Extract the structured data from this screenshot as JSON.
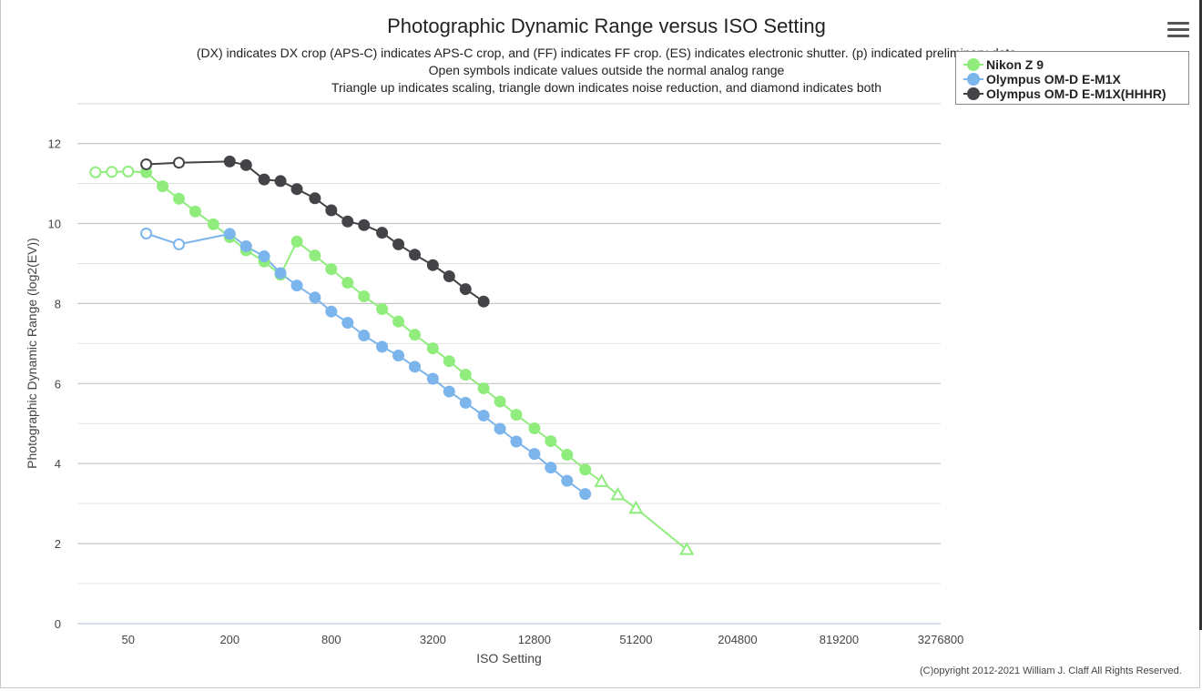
{
  "header": {
    "title": "Photographic Dynamic Range versus ISO Setting",
    "subtitle_lines": [
      "(DX) indicates DX crop (APS-C) indicates APS-C crop, and (FF) indicates FF crop. (ES) indicates electronic shutter. (p) indicated preliminary data",
      "Open symbols indicate values outside the normal analog range",
      "Triangle up indicates scaling, triangle down indicates noise reduction, and diamond indicates both"
    ],
    "menu_icon": "hamburger-menu-icon"
  },
  "legend": {
    "items": [
      {
        "label": "Nikon Z 9",
        "color": "#90ed7d"
      },
      {
        "label": "Olympus OM-D E-M1X",
        "color": "#7cb5ec"
      },
      {
        "label": "Olympus OM-D E-M1X(HHHR)",
        "color": "#434348"
      }
    ]
  },
  "copyright": "(C)opyright 2012-2021 William J. Claff All Rights Reserved.",
  "chart_data": {
    "type": "line",
    "title": "Photographic Dynamic Range versus ISO Setting",
    "xlabel": "ISO Setting",
    "ylabel": "Photographic Dynamic Range (log2(EV))",
    "x_scale": "log2",
    "xlim": [
      25,
      3276800
    ],
    "ylim": [
      0,
      12
    ],
    "x_ticks": [
      50,
      200,
      800,
      3200,
      12800,
      51200,
      204800,
      819200,
      3276800
    ],
    "y_ticks": [
      0,
      2,
      4,
      6,
      8,
      10,
      12
    ],
    "grid": true,
    "legend_position": "top-right",
    "series": [
      {
        "name": "Nikon Z 9",
        "color": "#90ed7d",
        "points": [
          {
            "x": 32,
            "y": 11.28,
            "m": "open"
          },
          {
            "x": 40,
            "y": 11.29,
            "m": "open"
          },
          {
            "x": 50,
            "y": 11.3,
            "m": "open"
          },
          {
            "x": 64,
            "y": 11.28,
            "m": "filled"
          },
          {
            "x": 80,
            "y": 10.93,
            "m": "filled"
          },
          {
            "x": 100,
            "y": 10.62,
            "m": "filled"
          },
          {
            "x": 125,
            "y": 10.3,
            "m": "filled"
          },
          {
            "x": 160,
            "y": 9.98,
            "m": "filled"
          },
          {
            "x": 200,
            "y": 9.66,
            "m": "filled"
          },
          {
            "x": 250,
            "y": 9.33,
            "m": "filled"
          },
          {
            "x": 320,
            "y": 9.05,
            "m": "filled"
          },
          {
            "x": 400,
            "y": 8.72,
            "m": "filled"
          },
          {
            "x": 500,
            "y": 9.55,
            "m": "filled"
          },
          {
            "x": 640,
            "y": 9.2,
            "m": "filled"
          },
          {
            "x": 800,
            "y": 8.86,
            "m": "filled"
          },
          {
            "x": 1000,
            "y": 8.52,
            "m": "filled"
          },
          {
            "x": 1250,
            "y": 8.18,
            "m": "filled"
          },
          {
            "x": 1600,
            "y": 7.86,
            "m": "filled"
          },
          {
            "x": 2000,
            "y": 7.55,
            "m": "filled"
          },
          {
            "x": 2500,
            "y": 7.22,
            "m": "filled"
          },
          {
            "x": 3200,
            "y": 6.88,
            "m": "filled"
          },
          {
            "x": 4000,
            "y": 6.56,
            "m": "filled"
          },
          {
            "x": 5000,
            "y": 6.22,
            "m": "filled"
          },
          {
            "x": 6400,
            "y": 5.88,
            "m": "filled"
          },
          {
            "x": 8000,
            "y": 5.55,
            "m": "filled"
          },
          {
            "x": 10000,
            "y": 5.22,
            "m": "filled"
          },
          {
            "x": 12800,
            "y": 4.88,
            "m": "filled"
          },
          {
            "x": 16000,
            "y": 4.56,
            "m": "filled"
          },
          {
            "x": 20000,
            "y": 4.22,
            "m": "filled"
          },
          {
            "x": 25600,
            "y": 3.85,
            "m": "filled"
          },
          {
            "x": 32000,
            "y": 3.55,
            "m": "open-triangle"
          },
          {
            "x": 40000,
            "y": 3.22,
            "m": "open-triangle"
          },
          {
            "x": 51200,
            "y": 2.88,
            "m": "open-triangle"
          },
          {
            "x": 102400,
            "y": 1.85,
            "m": "open-triangle"
          }
        ]
      },
      {
        "name": "Olympus OM-D E-M1X",
        "color": "#7cb5ec",
        "points": [
          {
            "x": 64,
            "y": 9.75,
            "m": "open"
          },
          {
            "x": 100,
            "y": 9.48,
            "m": "open"
          },
          {
            "x": 200,
            "y": 9.74,
            "m": "filled"
          },
          {
            "x": 250,
            "y": 9.43,
            "m": "filled"
          },
          {
            "x": 320,
            "y": 9.18,
            "m": "filled"
          },
          {
            "x": 400,
            "y": 8.76,
            "m": "filled"
          },
          {
            "x": 500,
            "y": 8.45,
            "m": "filled"
          },
          {
            "x": 640,
            "y": 8.15,
            "m": "filled"
          },
          {
            "x": 800,
            "y": 7.8,
            "m": "filled"
          },
          {
            "x": 1000,
            "y": 7.52,
            "m": "filled"
          },
          {
            "x": 1250,
            "y": 7.2,
            "m": "filled"
          },
          {
            "x": 1600,
            "y": 6.92,
            "m": "filled"
          },
          {
            "x": 2000,
            "y": 6.7,
            "m": "filled"
          },
          {
            "x": 2500,
            "y": 6.42,
            "m": "filled"
          },
          {
            "x": 3200,
            "y": 6.12,
            "m": "filled"
          },
          {
            "x": 4000,
            "y": 5.8,
            "m": "filled"
          },
          {
            "x": 5000,
            "y": 5.52,
            "m": "filled"
          },
          {
            "x": 6400,
            "y": 5.2,
            "m": "filled"
          },
          {
            "x": 8000,
            "y": 4.87,
            "m": "filled"
          },
          {
            "x": 10000,
            "y": 4.55,
            "m": "filled"
          },
          {
            "x": 12800,
            "y": 4.24,
            "m": "filled"
          },
          {
            "x": 16000,
            "y": 3.9,
            "m": "filled"
          },
          {
            "x": 20000,
            "y": 3.57,
            "m": "filled"
          },
          {
            "x": 25600,
            "y": 3.24,
            "m": "filled"
          }
        ]
      },
      {
        "name": "Olympus OM-D E-M1X(HHHR)",
        "color": "#434348",
        "points": [
          {
            "x": 64,
            "y": 11.48,
            "m": "open"
          },
          {
            "x": 100,
            "y": 11.52,
            "m": "open"
          },
          {
            "x": 200,
            "y": 11.55,
            "m": "filled"
          },
          {
            "x": 250,
            "y": 11.46,
            "m": "filled"
          },
          {
            "x": 320,
            "y": 11.1,
            "m": "filled"
          },
          {
            "x": 400,
            "y": 11.06,
            "m": "filled"
          },
          {
            "x": 500,
            "y": 10.86,
            "m": "filled"
          },
          {
            "x": 640,
            "y": 10.63,
            "m": "filled"
          },
          {
            "x": 800,
            "y": 10.33,
            "m": "filled"
          },
          {
            "x": 1000,
            "y": 10.05,
            "m": "filled"
          },
          {
            "x": 1250,
            "y": 9.96,
            "m": "filled"
          },
          {
            "x": 1600,
            "y": 9.77,
            "m": "filled"
          },
          {
            "x": 2000,
            "y": 9.48,
            "m": "filled"
          },
          {
            "x": 2500,
            "y": 9.22,
            "m": "filled"
          },
          {
            "x": 3200,
            "y": 8.96,
            "m": "filled"
          },
          {
            "x": 4000,
            "y": 8.68,
            "m": "filled"
          },
          {
            "x": 5000,
            "y": 8.36,
            "m": "filled"
          },
          {
            "x": 6400,
            "y": 8.05,
            "m": "filled"
          }
        ]
      }
    ]
  }
}
